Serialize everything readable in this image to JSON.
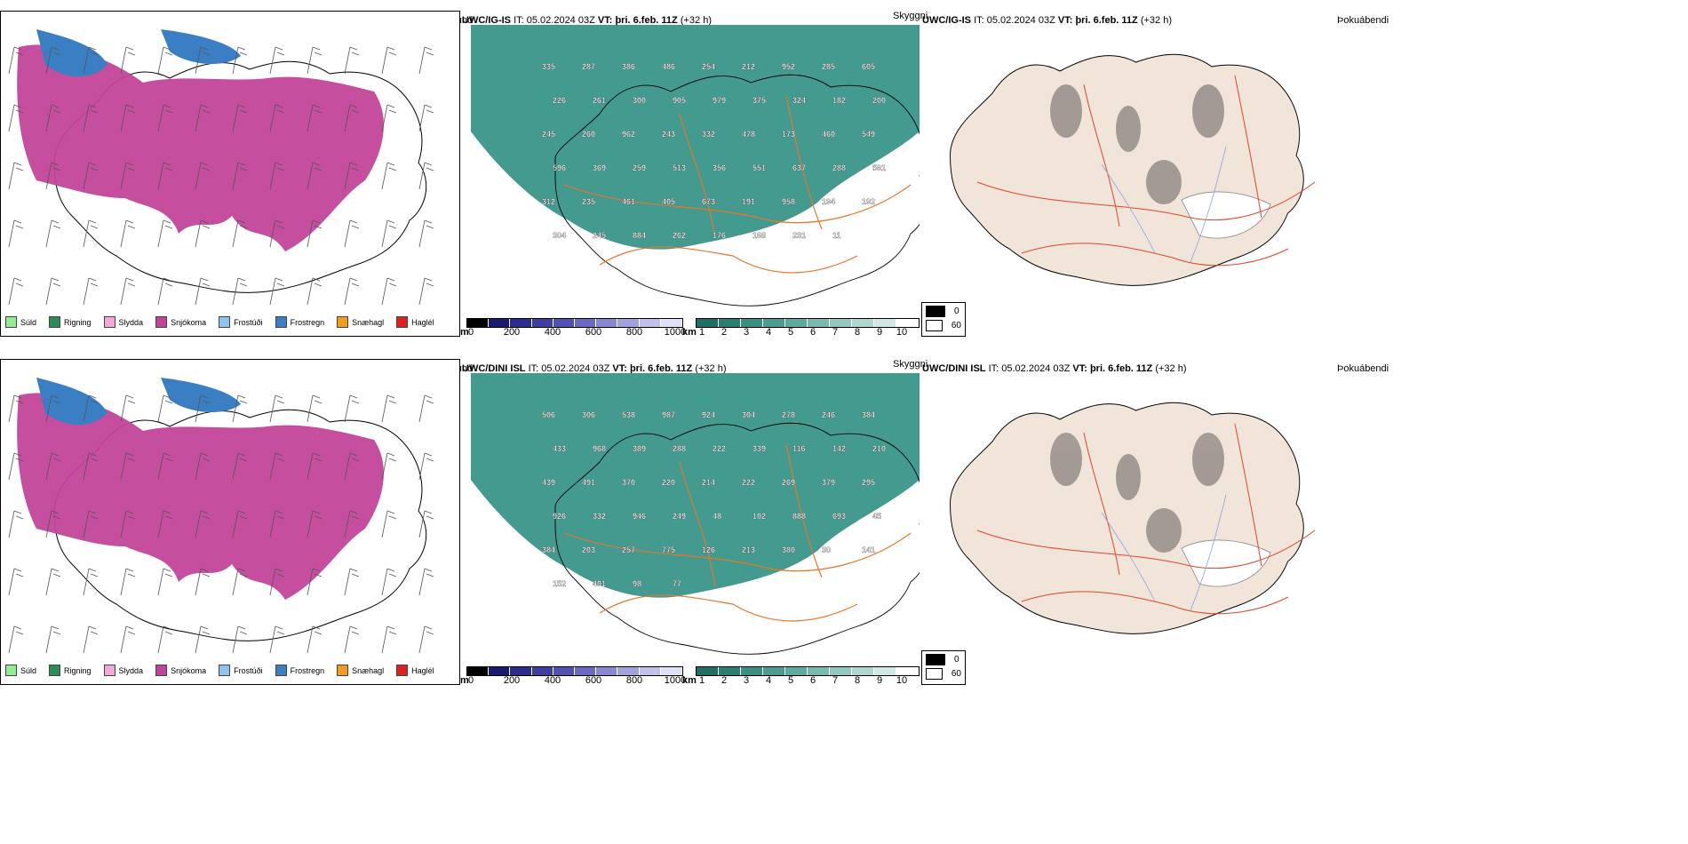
{
  "rows": [
    {
      "model": "UWC/IG-IS",
      "it_label": "IT:",
      "it": "05.02.2024 03Z",
      "vt_label": "VT:",
      "vt": "þri. 6.feb. 11Z",
      "lead": "(+32 h)",
      "labels": [
        "335",
        "287",
        "386",
        "486",
        "254",
        "212",
        "952",
        "285",
        "605",
        "226",
        "261",
        "300",
        "905",
        "979",
        "375",
        "324",
        "182",
        "200",
        "245",
        "260",
        "962",
        "243",
        "332",
        "478",
        "173",
        "460",
        "549",
        "596",
        "369",
        "259",
        "513",
        "356",
        "551",
        "637",
        "288",
        "561",
        "312",
        "235",
        "461",
        "405",
        "673",
        "191",
        "958",
        "194",
        "192",
        "304",
        "245",
        "884",
        "262",
        "176",
        "168",
        "231",
        "11"
      ]
    },
    {
      "model": "UWC/DINI ISL",
      "it_label": "IT:",
      "it": "05.02.2024 03Z",
      "vt_label": "VT:",
      "vt": "þri. 6.feb. 11Z",
      "lead": "(+32 h)",
      "labels": [
        "506",
        "306",
        "538",
        "987",
        "924",
        "304",
        "278",
        "246",
        "384",
        "433",
        "968",
        "389",
        "288",
        "222",
        "339",
        "116",
        "142",
        "210",
        "439",
        "491",
        "370",
        "220",
        "214",
        "222",
        "269",
        "379",
        "295",
        "926",
        "332",
        "946",
        "249",
        "48",
        "102",
        "888",
        "693",
        "45",
        "384",
        "203",
        "257",
        "775",
        "126",
        "213",
        "380",
        "30",
        "141",
        "152",
        "491",
        "98",
        "77"
      ]
    }
  ],
  "panel_titles": {
    "precip": "Úrkomutegund",
    "visibility": "Skyggni",
    "fog": "Þokuábendi"
  },
  "precip_legend": [
    {
      "label": "Súld",
      "color": "#90ee90"
    },
    {
      "label": "Rigning",
      "color": "#2e8b57"
    },
    {
      "label": "Slydda",
      "color": "#f4a6d8"
    },
    {
      "label": "Snjókoma",
      "color": "#c2449a"
    },
    {
      "label": "Frostúði",
      "color": "#8ec5f0"
    },
    {
      "label": "Frostregn",
      "color": "#3a7fc4"
    },
    {
      "label": "Snæhagl",
      "color": "#f39c1f"
    },
    {
      "label": "Haglél",
      "color": "#e0201b"
    }
  ],
  "elev_scale": {
    "unit": "m",
    "ticks": [
      "0",
      "200",
      "400",
      "600",
      "800",
      "1000"
    ]
  },
  "vis_scale": {
    "unit": "km",
    "ticks": [
      "1",
      "2",
      "3",
      "4",
      "5",
      "6",
      "7",
      "8",
      "9",
      "10"
    ]
  },
  "fog_legend": [
    "0",
    "60"
  ],
  "colors": {
    "snow": "#c2449a",
    "frostregn": "#3a7fc4",
    "teal": "#2f8f83",
    "land": "#f1e4d8",
    "road": "#e9762b"
  }
}
